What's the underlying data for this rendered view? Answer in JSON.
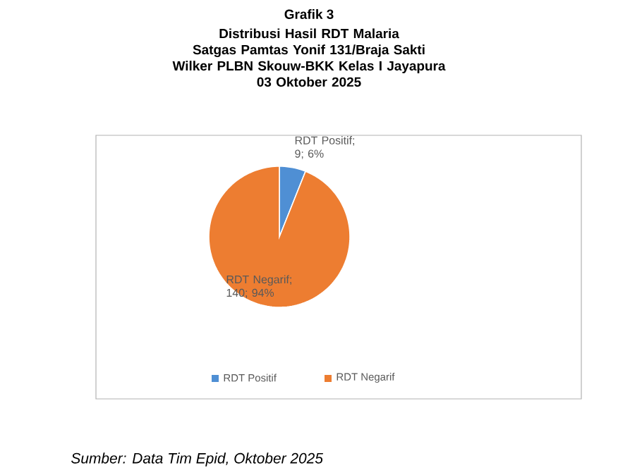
{
  "chart_data": {
    "type": "pie",
    "title": "Grafik 3",
    "subtitle": "Distribusi Hasil RDT Malaria\nSatgas Pamtas Yonif 131/Braja Sakti\nWilker PLBN Skouw-BKK Kelas I Jayapura\n03 Oktober 2025",
    "categories": [
      "RDT Positif",
      "RDT Negarif"
    ],
    "values": [
      9,
      140
    ],
    "colors": [
      "#4f8fd4",
      "#ed7d31"
    ],
    "value_labels": [
      "RDT Positif; 9; 6%",
      "RDT Negarif; 140; 94%"
    ],
    "legend": "bottom",
    "annotations": [
      "Sumber: Data Tim Epid, Oktober 2025"
    ]
  }
}
